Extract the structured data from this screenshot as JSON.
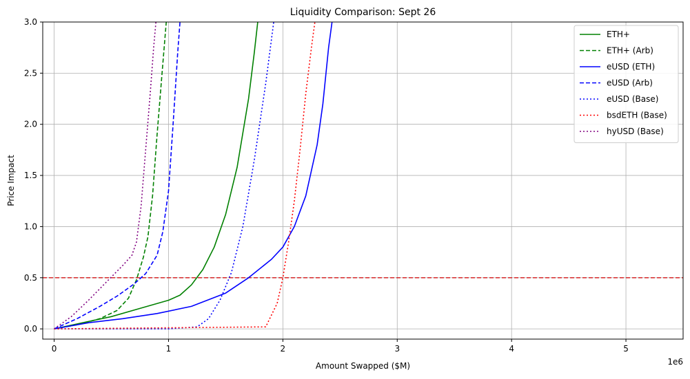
{
  "chart_data": {
    "type": "line",
    "title": "Liquidity Comparison: Sept 26",
    "xlabel": "Amount Swapped ($M)",
    "ylabel": "Price Impact",
    "x_offset_label": "1e6",
    "xlim": [
      -100000,
      5500000
    ],
    "ylim": [
      -0.1,
      3.0
    ],
    "x_ticks": [
      0,
      1000000,
      2000000,
      3000000,
      4000000,
      5000000
    ],
    "x_tick_labels": [
      "0",
      "1",
      "2",
      "3",
      "4",
      "5"
    ],
    "y_ticks": [
      0,
      0.5,
      1.0,
      1.5,
      2.0,
      2.5,
      3.0
    ],
    "y_tick_labels": [
      "0.0",
      "0.5",
      "1.0",
      "1.5",
      "2.0",
      "2.5",
      "3.0"
    ],
    "grid": true,
    "legend_position": "top-right",
    "hline": {
      "y": 0.5,
      "color": "#d62728",
      "style": "dashed"
    },
    "series": [
      {
        "name": "ETH+",
        "color": "#008000",
        "dash": "solid",
        "points": [
          [
            0,
            0
          ],
          [
            250000,
            0.06
          ],
          [
            500000,
            0.12
          ],
          [
            750000,
            0.2
          ],
          [
            1000000,
            0.28
          ],
          [
            1100000,
            0.33
          ],
          [
            1200000,
            0.43
          ],
          [
            1300000,
            0.58
          ],
          [
            1400000,
            0.8
          ],
          [
            1500000,
            1.12
          ],
          [
            1600000,
            1.58
          ],
          [
            1700000,
            2.25
          ],
          [
            1750000,
            2.7
          ],
          [
            1780000,
            3.0
          ]
        ]
      },
      {
        "name": "ETH+ (Arb)",
        "color": "#008000",
        "dash": "dashed",
        "points": [
          [
            0,
            0
          ],
          [
            200000,
            0.04
          ],
          [
            400000,
            0.1
          ],
          [
            550000,
            0.18
          ],
          [
            650000,
            0.3
          ],
          [
            720000,
            0.48
          ],
          [
            780000,
            0.7
          ],
          [
            820000,
            0.9
          ],
          [
            860000,
            1.3
          ],
          [
            900000,
            1.9
          ],
          [
            940000,
            2.45
          ],
          [
            980000,
            3.0
          ]
        ]
      },
      {
        "name": "eUSD (ETH)",
        "color": "#0000ff",
        "dash": "solid",
        "points": [
          [
            0,
            0
          ],
          [
            300000,
            0.06
          ],
          [
            600000,
            0.1
          ],
          [
            900000,
            0.15
          ],
          [
            1200000,
            0.22
          ],
          [
            1500000,
            0.35
          ],
          [
            1700000,
            0.5
          ],
          [
            1900000,
            0.68
          ],
          [
            2000000,
            0.8
          ],
          [
            2100000,
            1.0
          ],
          [
            2200000,
            1.3
          ],
          [
            2300000,
            1.8
          ],
          [
            2350000,
            2.2
          ],
          [
            2400000,
            2.75
          ],
          [
            2430000,
            3.0
          ]
        ]
      },
      {
        "name": "eUSD (Arb)",
        "color": "#0000ff",
        "dash": "dashed",
        "points": [
          [
            0,
            0
          ],
          [
            200000,
            0.1
          ],
          [
            400000,
            0.22
          ],
          [
            550000,
            0.32
          ],
          [
            700000,
            0.44
          ],
          [
            800000,
            0.54
          ],
          [
            900000,
            0.72
          ],
          [
            950000,
            0.95
          ],
          [
            1000000,
            1.35
          ],
          [
            1040000,
            2.0
          ],
          [
            1080000,
            2.7
          ],
          [
            1100000,
            3.0
          ]
        ]
      },
      {
        "name": "eUSD (Base)",
        "color": "#0000ff",
        "dash": "dotted",
        "points": [
          [
            0,
            0
          ],
          [
            1000000,
            0
          ],
          [
            1250000,
            0.02
          ],
          [
            1350000,
            0.1
          ],
          [
            1450000,
            0.28
          ],
          [
            1550000,
            0.55
          ],
          [
            1650000,
            1.0
          ],
          [
            1750000,
            1.65
          ],
          [
            1850000,
            2.4
          ],
          [
            1920000,
            3.0
          ]
        ]
      },
      {
        "name": "bsdETH (Base)",
        "color": "#ff0000",
        "dash": "dotted",
        "points": [
          [
            0,
            0
          ],
          [
            1850000,
            0.02
          ],
          [
            1950000,
            0.25
          ],
          [
            2000000,
            0.5
          ],
          [
            2050000,
            0.85
          ],
          [
            2100000,
            1.25
          ],
          [
            2150000,
            1.75
          ],
          [
            2200000,
            2.3
          ],
          [
            2250000,
            2.75
          ],
          [
            2280000,
            3.0
          ]
        ]
      },
      {
        "name": "hyUSD (Base)",
        "color": "#800080",
        "dash": "dotted",
        "points": [
          [
            0,
            0
          ],
          [
            150000,
            0.12
          ],
          [
            300000,
            0.28
          ],
          [
            450000,
            0.45
          ],
          [
            600000,
            0.62
          ],
          [
            680000,
            0.72
          ],
          [
            720000,
            0.85
          ],
          [
            760000,
            1.2
          ],
          [
            800000,
            1.75
          ],
          [
            840000,
            2.3
          ],
          [
            870000,
            2.75
          ],
          [
            890000,
            3.0
          ]
        ]
      }
    ]
  }
}
